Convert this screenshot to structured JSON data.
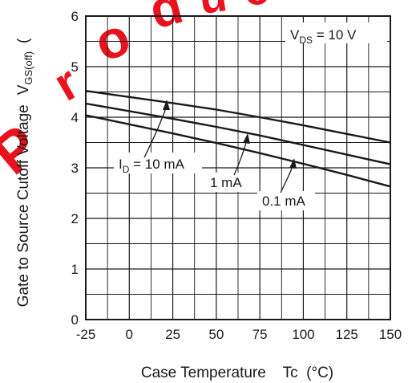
{
  "watermark": {
    "text": "Producer",
    "color": "#e8000a"
  },
  "chart_data": {
    "type": "line",
    "xlabel": "Case Temperature    Tc  (°C)",
    "ylabel": "Gate to Source Cutoff Voltage",
    "ylabel_symbol": "V",
    "ylabel_sub": "GS(off)",
    "ylabel_unit": "(",
    "xlim": [
      -25,
      150
    ],
    "ylim": [
      0,
      6
    ],
    "x_ticks": [
      -25,
      0,
      25,
      50,
      75,
      100,
      125,
      150
    ],
    "y_ticks": [
      0,
      1,
      2,
      3,
      4,
      5,
      6
    ],
    "grid": true,
    "condition": {
      "symbol": "V",
      "sub": "DS",
      "rest": " = 10 V"
    },
    "series": [
      {
        "name": "10 mA",
        "label_symbol": "I",
        "label_sub": "D",
        "label_rest": " = 10 mA",
        "x": [
          -25,
          0,
          25,
          50,
          75,
          100,
          125,
          150
        ],
        "y": [
          4.52,
          4.4,
          4.28,
          4.15,
          4.0,
          3.84,
          3.67,
          3.5
        ]
      },
      {
        "name": "1 mA",
        "label": "1 mA",
        "x": [
          -25,
          0,
          25,
          50,
          75,
          100,
          125,
          150
        ],
        "y": [
          4.27,
          4.12,
          3.97,
          3.81,
          3.64,
          3.45,
          3.26,
          3.07
        ]
      },
      {
        "name": "0.1 mA",
        "label": "0.1 mA",
        "x": [
          -25,
          0,
          25,
          50,
          75,
          100,
          125,
          150
        ],
        "y": [
          4.04,
          3.86,
          3.68,
          3.49,
          3.29,
          3.08,
          2.86,
          2.63
        ]
      }
    ]
  }
}
